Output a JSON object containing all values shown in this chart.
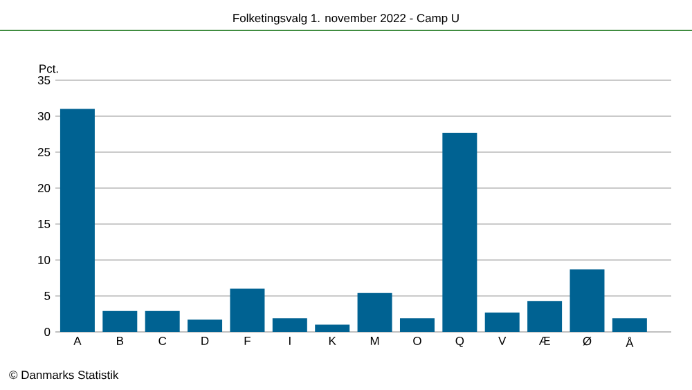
{
  "chart_data": {
    "type": "bar",
    "title": "Folketingsvalg 1. november 2022 - Camp U",
    "ylabel": "Pct.",
    "categories": [
      "A",
      "B",
      "C",
      "D",
      "F",
      "I",
      "K",
      "M",
      "O",
      "Q",
      "V",
      "Æ",
      "Ø",
      "Å"
    ],
    "values": [
      31.0,
      2.9,
      2.9,
      1.7,
      6.0,
      1.9,
      1.0,
      5.4,
      1.9,
      27.7,
      2.7,
      4.3,
      8.7,
      1.9
    ],
    "color": "#006292",
    "ylim": [
      0,
      35
    ],
    "yticks": [
      0,
      5,
      10,
      15,
      20,
      25,
      30,
      35
    ],
    "grid": "y",
    "annotations": [
      "© Danmarks Statistik"
    ]
  }
}
